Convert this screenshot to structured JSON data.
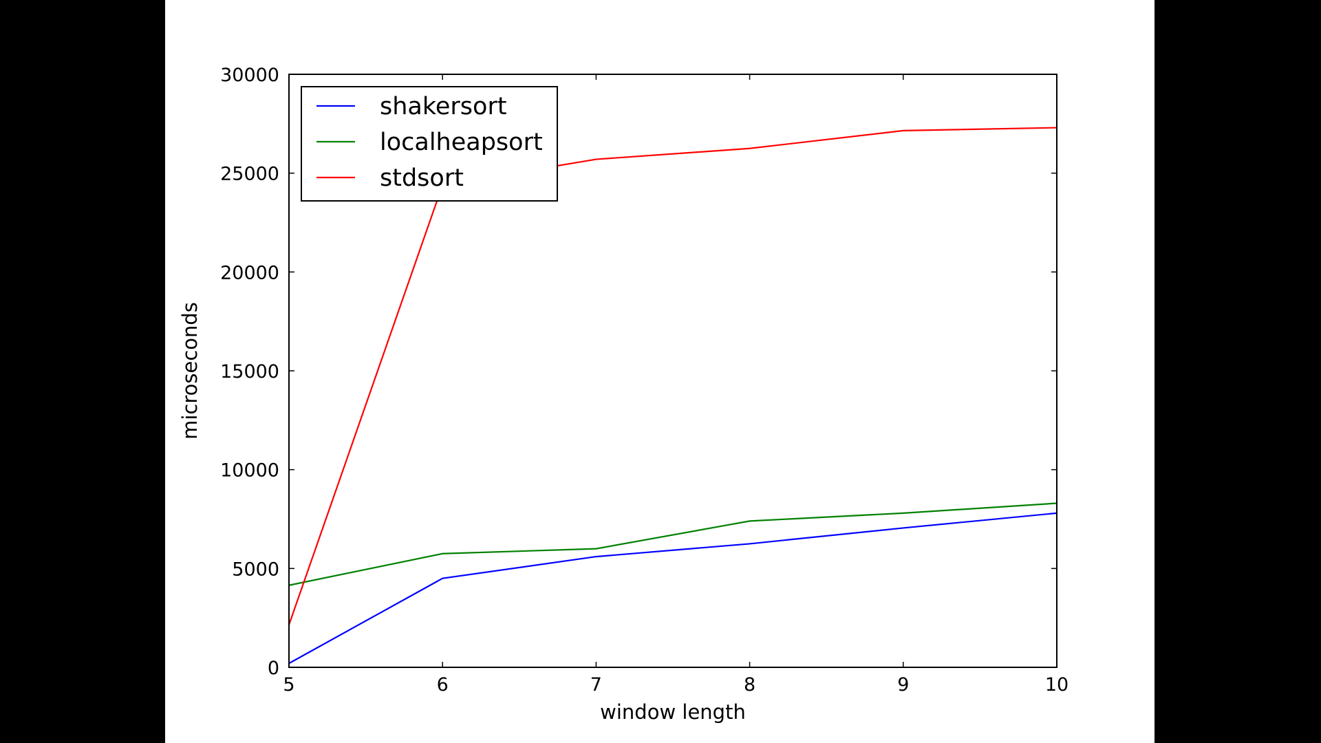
{
  "chart_data": {
    "type": "line",
    "xlabel": "window length",
    "ylabel": "microseconds",
    "xlim": [
      5,
      10
    ],
    "ylim": [
      0,
      30000
    ],
    "x": [
      5,
      6,
      7,
      8,
      9,
      10
    ],
    "xticks": [
      "5",
      "6",
      "7",
      "8",
      "9",
      "10"
    ],
    "yticks": [
      "0",
      "5000",
      "10000",
      "15000",
      "20000",
      "25000",
      "30000"
    ],
    "grid": false,
    "legend_position": "top-left",
    "series": [
      {
        "name": "shakersort",
        "color": "#0000ff",
        "values": [
          200,
          4500,
          5600,
          6250,
          7050,
          7800
        ]
      },
      {
        "name": "localheapsort",
        "color": "#008000",
        "values": [
          4150,
          5750,
          6000,
          7400,
          7800,
          8300
        ]
      },
      {
        "name": "stdsort",
        "color": "#ff0000",
        "values": [
          2150,
          24400,
          25700,
          26250,
          27150,
          27300
        ]
      }
    ]
  }
}
